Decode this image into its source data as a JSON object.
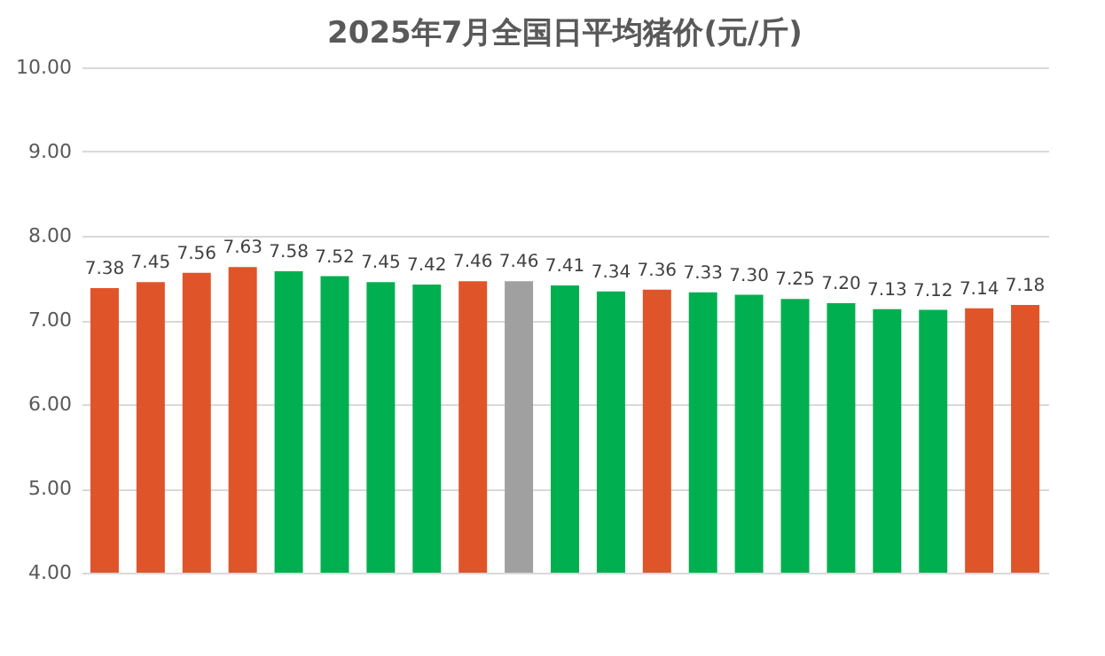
{
  "chart_data": {
    "type": "bar",
    "title": "2025年7月全国日平均猪价(元/斤)",
    "categories": [
      null,
      null,
      null,
      null,
      null,
      null,
      null,
      null,
      null,
      null,
      null,
      null,
      null,
      null,
      null,
      null,
      null,
      null,
      null,
      null,
      null
    ],
    "values": [
      7.38,
      7.45,
      7.56,
      7.63,
      7.58,
      7.52,
      7.45,
      7.42,
      7.46,
      7.46,
      7.41,
      7.34,
      7.36,
      7.33,
      7.3,
      7.25,
      7.2,
      7.13,
      7.12,
      7.14,
      7.18
    ],
    "colors": [
      "#e0542a",
      "#e0542a",
      "#e0542a",
      "#e0542a",
      "#00b050",
      "#00b050",
      "#00b050",
      "#00b050",
      "#e0542a",
      "#a0a0a0",
      "#00b050",
      "#00b050",
      "#e0542a",
      "#00b050",
      "#00b050",
      "#00b050",
      "#00b050",
      "#00b050",
      "#00b050",
      "#e0542a",
      "#e0542a"
    ],
    "value_labels": [
      "7.38",
      "7.45",
      "7.56",
      "7.63",
      "7.58",
      "7.52",
      "7.45",
      "7.42",
      "7.46",
      "7.46",
      "7.41",
      "7.34",
      "7.36",
      "7.33",
      "7.30",
      "7.25",
      "7.20",
      "7.13",
      "7.12",
      "7.14",
      "7.18"
    ],
    "ylim": [
      4,
      10
    ],
    "yticks": [
      {
        "value": 4,
        "label": "4.00"
      },
      {
        "value": 5,
        "label": "5.00"
      },
      {
        "value": 6,
        "label": "6.00"
      },
      {
        "value": 7,
        "label": "7.00"
      },
      {
        "value": 8,
        "label": "8.00"
      },
      {
        "value": 9,
        "label": "9.00"
      },
      {
        "value": 10,
        "label": "10.00"
      }
    ],
    "grid": "y"
  }
}
